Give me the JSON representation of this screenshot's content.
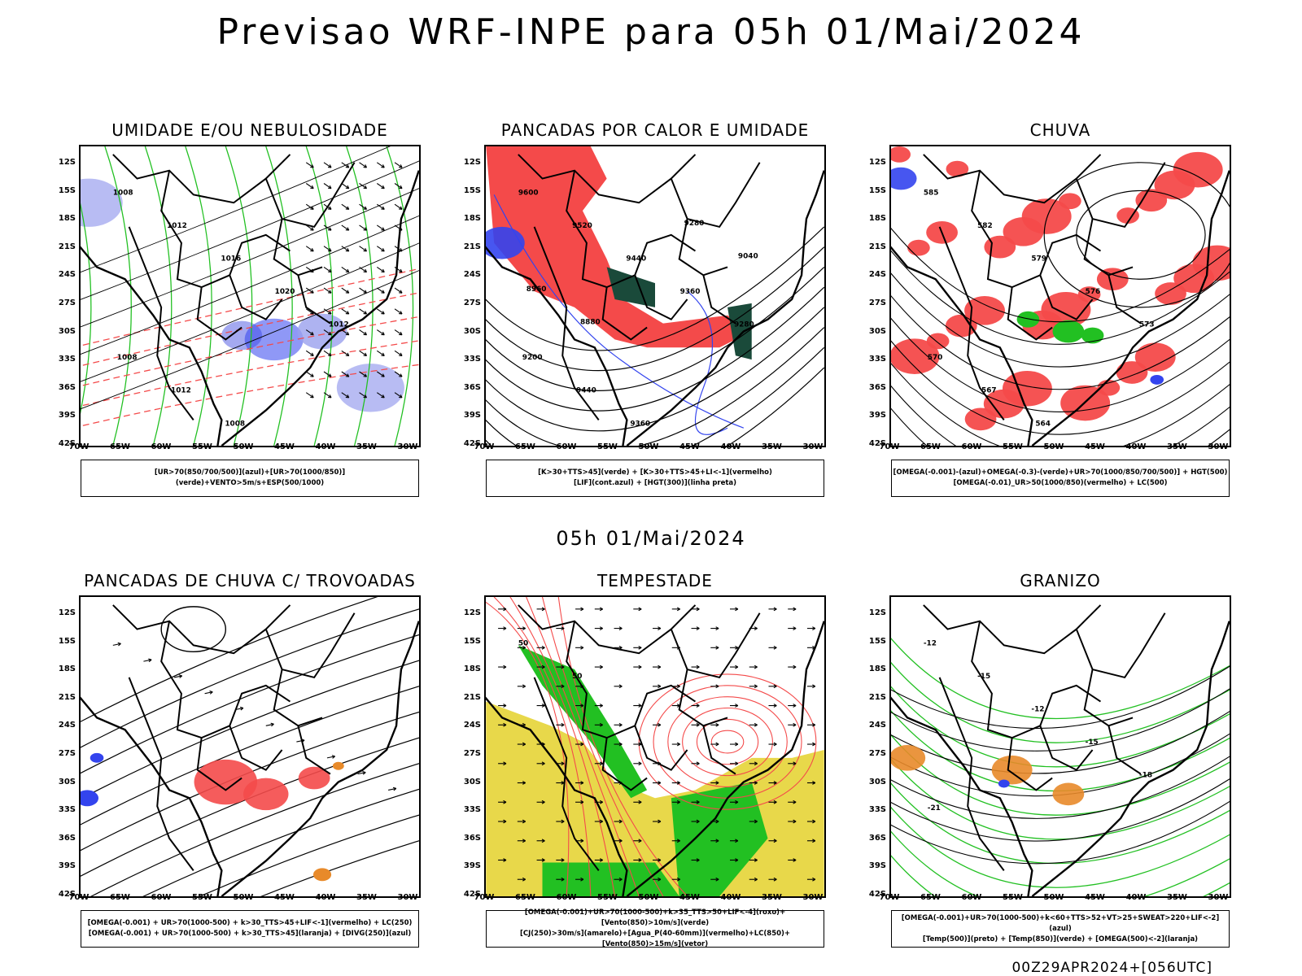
{
  "title": "Previsao WRF-INPE  para 05h 01/Mai/2024",
  "mid_date": "05h 01/Mai/2024",
  "footer": "00Z29APR2024+[056UTC]",
  "axes": {
    "lat": [
      "12S",
      "15S",
      "18S",
      "21S",
      "24S",
      "27S",
      "30S",
      "33S",
      "36S",
      "39S",
      "42S"
    ],
    "lon": [
      "70W",
      "65W",
      "60W",
      "55W",
      "50W",
      "45W",
      "40W",
      "35W",
      "30W"
    ]
  },
  "colors": {
    "red": "#f44a4a",
    "green": "#22c022",
    "blue": "#3344ee",
    "yellow": "#e8d84a",
    "orange": "#e88a2a",
    "darkgreen": "#1a4a3a",
    "lightblue": "#9aa0ee"
  },
  "panels": [
    {
      "title": "UMIDADE E/OU NEBULOSIDADE",
      "legend": [
        "[UR>70(850/700/500)](azul)+[UR>70(1000/850)](verde)+VENTO>5m/s+ESP(500/1000)"
      ],
      "labels": [
        "1008",
        "1012",
        "1016",
        "1020",
        "1012",
        "1008",
        "1012",
        "1008"
      ]
    },
    {
      "title": "PANCADAS POR CALOR E UMIDADE",
      "legend": [
        "[K>30+TTS>45](verde) + [K>30+TTS>45+LI<-1](vermelho)",
        "[LIF](cont.azul) + [HGT(300)](linha preta)"
      ],
      "labels": [
        "9600",
        "9520",
        "9440",
        "9360",
        "9280",
        "9200",
        "9440",
        "9360",
        "9280",
        "9040",
        "8960",
        "8880"
      ]
    },
    {
      "title": "CHUVA",
      "legend": [
        "[OMEGA(-0.001)-(azul)+OMEGA(-0.3)-(verde)+UR>70(1000/850/700/500)] + HGT(500)",
        "[OMEGA(-0.01)_UR>50(1000/850)(vermelho) + LC(500)"
      ],
      "labels": [
        "585",
        "582",
        "579",
        "576",
        "573",
        "570",
        "567",
        "564"
      ]
    },
    {
      "title": "PANCADAS DE CHUVA C/ TROVOADAS",
      "legend": [
        "[OMEGA(-0.001) + UR>70(1000-500) + k>30_TTS>45+LIF<-1](vermelho) + LC(250)",
        "[OMEGA(-0.001) + UR>70(1000-500) + k>30_TTS>45](laranja) + [DIVG(250)](azul)"
      ],
      "labels": []
    },
    {
      "title": "TEMPESTADE",
      "legend": [
        "[OMEGA(-0.001)+UR>70(1000-500)+k>35_TTS>50+LIF<-4](roxo)+[Vento(850)>10m/s](verde)",
        "[CJ(250)>30m/s](amarelo)+[Agua_P(40-60mm)](vermelho)+LC(850)+[Vento(850)>15m/s](vetor)"
      ],
      "labels": [
        "50",
        "50"
      ]
    },
    {
      "title": "GRANIZO",
      "legend": [
        "[OMEGA(-0.001)+UR>70(1000-500)+k<60+TTS>52+VT>25+SWEAT>220+LIF<-2](azul)",
        "[Temp(500)](preto) + [Temp(850)](verde) + [OMEGA(500)<-2](laranja)"
      ],
      "labels": [
        "-12",
        "-15",
        "-12",
        "-15",
        "-18",
        "-21"
      ]
    }
  ]
}
